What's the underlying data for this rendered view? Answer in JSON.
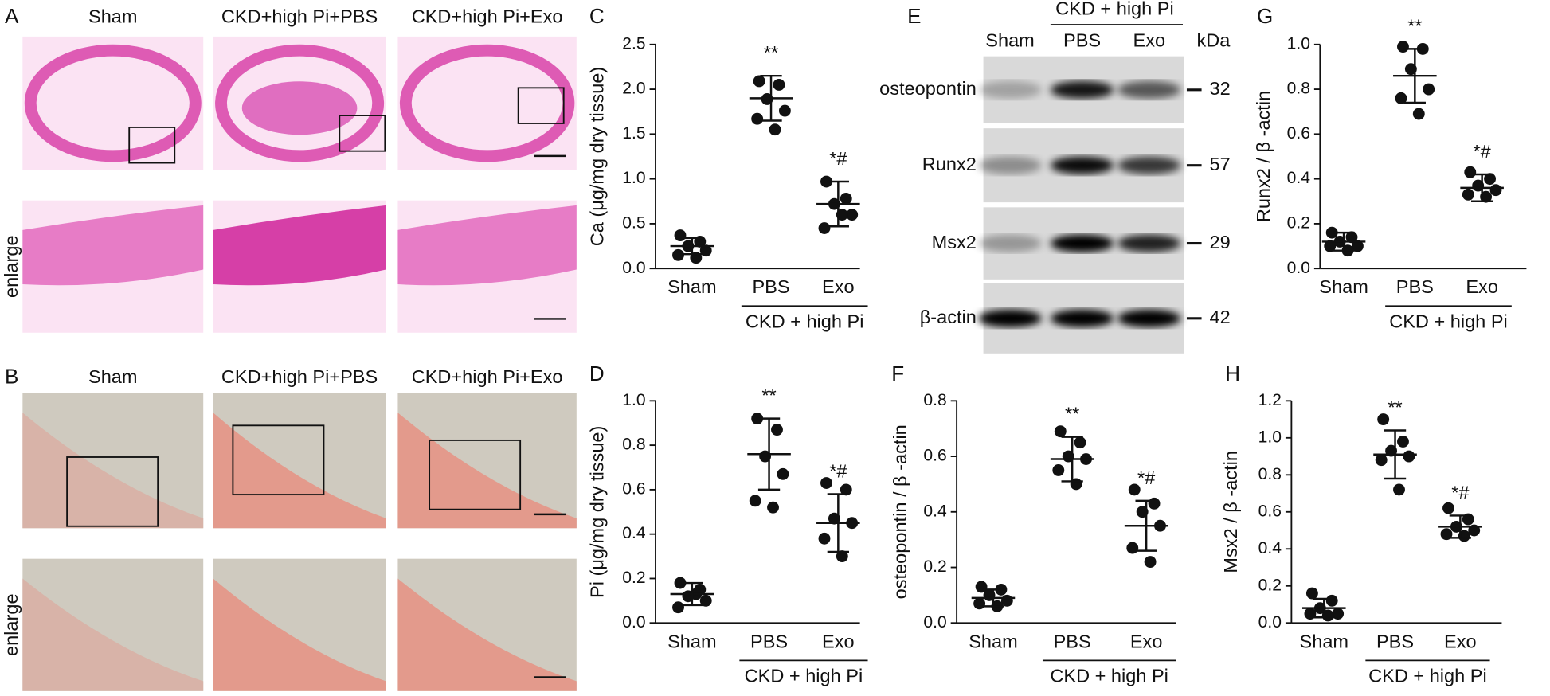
{
  "panel_a": {
    "letter": "A",
    "columns": [
      "Sham",
      "CKD+high Pi+PBS",
      "CKD+high Pi+Exo"
    ],
    "row_label": "enlarge"
  },
  "panel_b": {
    "letter": "B",
    "columns": [
      "Sham",
      "CKD+high Pi+PBS",
      "CKD+high Pi+Exo"
    ],
    "row_label": "enlarge"
  },
  "panel_e": {
    "letter": "E",
    "header": "CKD + high Pi",
    "lanes": [
      "Sham",
      "PBS",
      "Exo"
    ],
    "unit": "kDa",
    "bands": [
      {
        "name": "osteopontin",
        "kda": 32
      },
      {
        "name": "Runx2",
        "kda": 57
      },
      {
        "name": "Msx2",
        "kda": 29
      },
      {
        "name": "β-actin",
        "kda": 42
      }
    ]
  },
  "chart_data": [
    {
      "type": "dotplot",
      "letter": "C",
      "y_label": "Ca (μg/mg dry tissue)",
      "categories": [
        "Sham",
        "PBS",
        "Exo"
      ],
      "group_label": "CKD + high Pi",
      "points": [
        [
          0.37,
          0.3,
          0.25,
          0.2,
          0.15,
          0.12
        ],
        [
          2.09,
          2.05,
          1.89,
          1.76,
          1.67,
          1.55
        ],
        [
          0.97,
          0.78,
          0.72,
          0.6,
          0.45,
          0.6
        ]
      ],
      "means": [
        0.25,
        1.9,
        0.72
      ],
      "sds": [
        0.09,
        0.25,
        0.25
      ],
      "annotations": [
        null,
        "**",
        "*#"
      ],
      "color": "#111111",
      "ylim": [
        0,
        2.5
      ],
      "yticks": [
        {
          "value": 0,
          "label": "0.0"
        },
        0.5,
        {
          "value": 1,
          "label": "1.0"
        },
        1.5,
        {
          "value": 2,
          "label": "2.0"
        },
        2.5
      ]
    },
    {
      "type": "dotplot",
      "letter": "D",
      "y_label": "Pi (μg/mg dry tissue)",
      "categories": [
        "Sham",
        "PBS",
        "Exo"
      ],
      "group_label": "CKD + high Pi",
      "points": [
        [
          0.18,
          0.15,
          0.12,
          0.1,
          0.07,
          0.13
        ],
        [
          0.92,
          0.87,
          0.75,
          0.67,
          0.55,
          0.52
        ],
        [
          0.63,
          0.6,
          0.47,
          0.45,
          0.38,
          0.3
        ]
      ],
      "means": [
        0.13,
        0.76,
        0.45
      ],
      "sds": [
        0.05,
        0.16,
        0.13
      ],
      "annotations": [
        null,
        "**",
        "*#"
      ],
      "color": "#111111",
      "ylim": [
        0,
        1
      ],
      "yticks": [
        {
          "value": 0,
          "label": "0.0"
        },
        0.2,
        0.4,
        0.6,
        0.8,
        {
          "value": 1,
          "label": "1.0"
        }
      ]
    },
    {
      "type": "dotplot",
      "letter": "F",
      "y_label": "osteopontin / β -actin",
      "categories": [
        "Sham",
        "PBS",
        "Exo"
      ],
      "group_label": "CKD + high Pi",
      "points": [
        [
          0.13,
          0.12,
          0.1,
          0.08,
          0.07,
          0.06
        ],
        [
          0.69,
          0.65,
          0.6,
          0.59,
          0.55,
          0.5
        ],
        [
          0.48,
          0.43,
          0.4,
          0.35,
          0.27,
          0.22
        ]
      ],
      "means": [
        0.09,
        0.59,
        0.35
      ],
      "sds": [
        0.03,
        0.08,
        0.09
      ],
      "annotations": [
        null,
        "**",
        "*#"
      ],
      "color": "#111111",
      "ylim": [
        0,
        0.8
      ],
      "yticks": [
        {
          "value": 0,
          "label": "0.0"
        },
        0.2,
        0.4,
        0.6,
        0.8
      ]
    },
    {
      "type": "dotplot",
      "letter": "G",
      "y_label": "Runx2 / β -actin",
      "categories": [
        "Sham",
        "PBS",
        "Exo"
      ],
      "group_label": "CKD + high Pi",
      "points": [
        [
          0.16,
          0.14,
          0.12,
          0.1,
          0.1,
          0.08
        ],
        [
          0.99,
          0.98,
          0.89,
          0.8,
          0.76,
          0.69
        ],
        [
          0.43,
          0.4,
          0.37,
          0.35,
          0.33,
          0.32
        ]
      ],
      "means": [
        0.12,
        0.86,
        0.36
      ],
      "sds": [
        0.04,
        0.12,
        0.06
      ],
      "annotations": [
        null,
        "**",
        "*#"
      ],
      "color": "#111111",
      "ylim": [
        0,
        1
      ],
      "yticks": [
        {
          "value": 0,
          "label": "0.0"
        },
        0.2,
        0.4,
        0.6,
        0.8,
        {
          "value": 1,
          "label": "1.0"
        }
      ]
    },
    {
      "type": "dotplot",
      "letter": "H",
      "y_label": "Msx2 / β -actin",
      "categories": [
        "Sham",
        "PBS",
        "Exo"
      ],
      "group_label": "CKD + high Pi",
      "points": [
        [
          0.16,
          0.12,
          0.08,
          0.05,
          0.05,
          0.04
        ],
        [
          1.1,
          0.98,
          0.93,
          0.9,
          0.88,
          0.72
        ],
        [
          0.62,
          0.56,
          0.52,
          0.5,
          0.48,
          0.47
        ]
      ],
      "means": [
        0.08,
        0.91,
        0.52
      ],
      "sds": [
        0.05,
        0.13,
        0.06
      ],
      "annotations": [
        null,
        "**",
        "*#"
      ],
      "color": "#111111",
      "ylim": [
        0,
        1.2
      ],
      "yticks": [
        {
          "value": 0,
          "label": "0.0"
        },
        0.2,
        0.4,
        0.6,
        0.8,
        {
          "value": 1,
          "label": "1.0"
        },
        1.2
      ]
    }
  ]
}
